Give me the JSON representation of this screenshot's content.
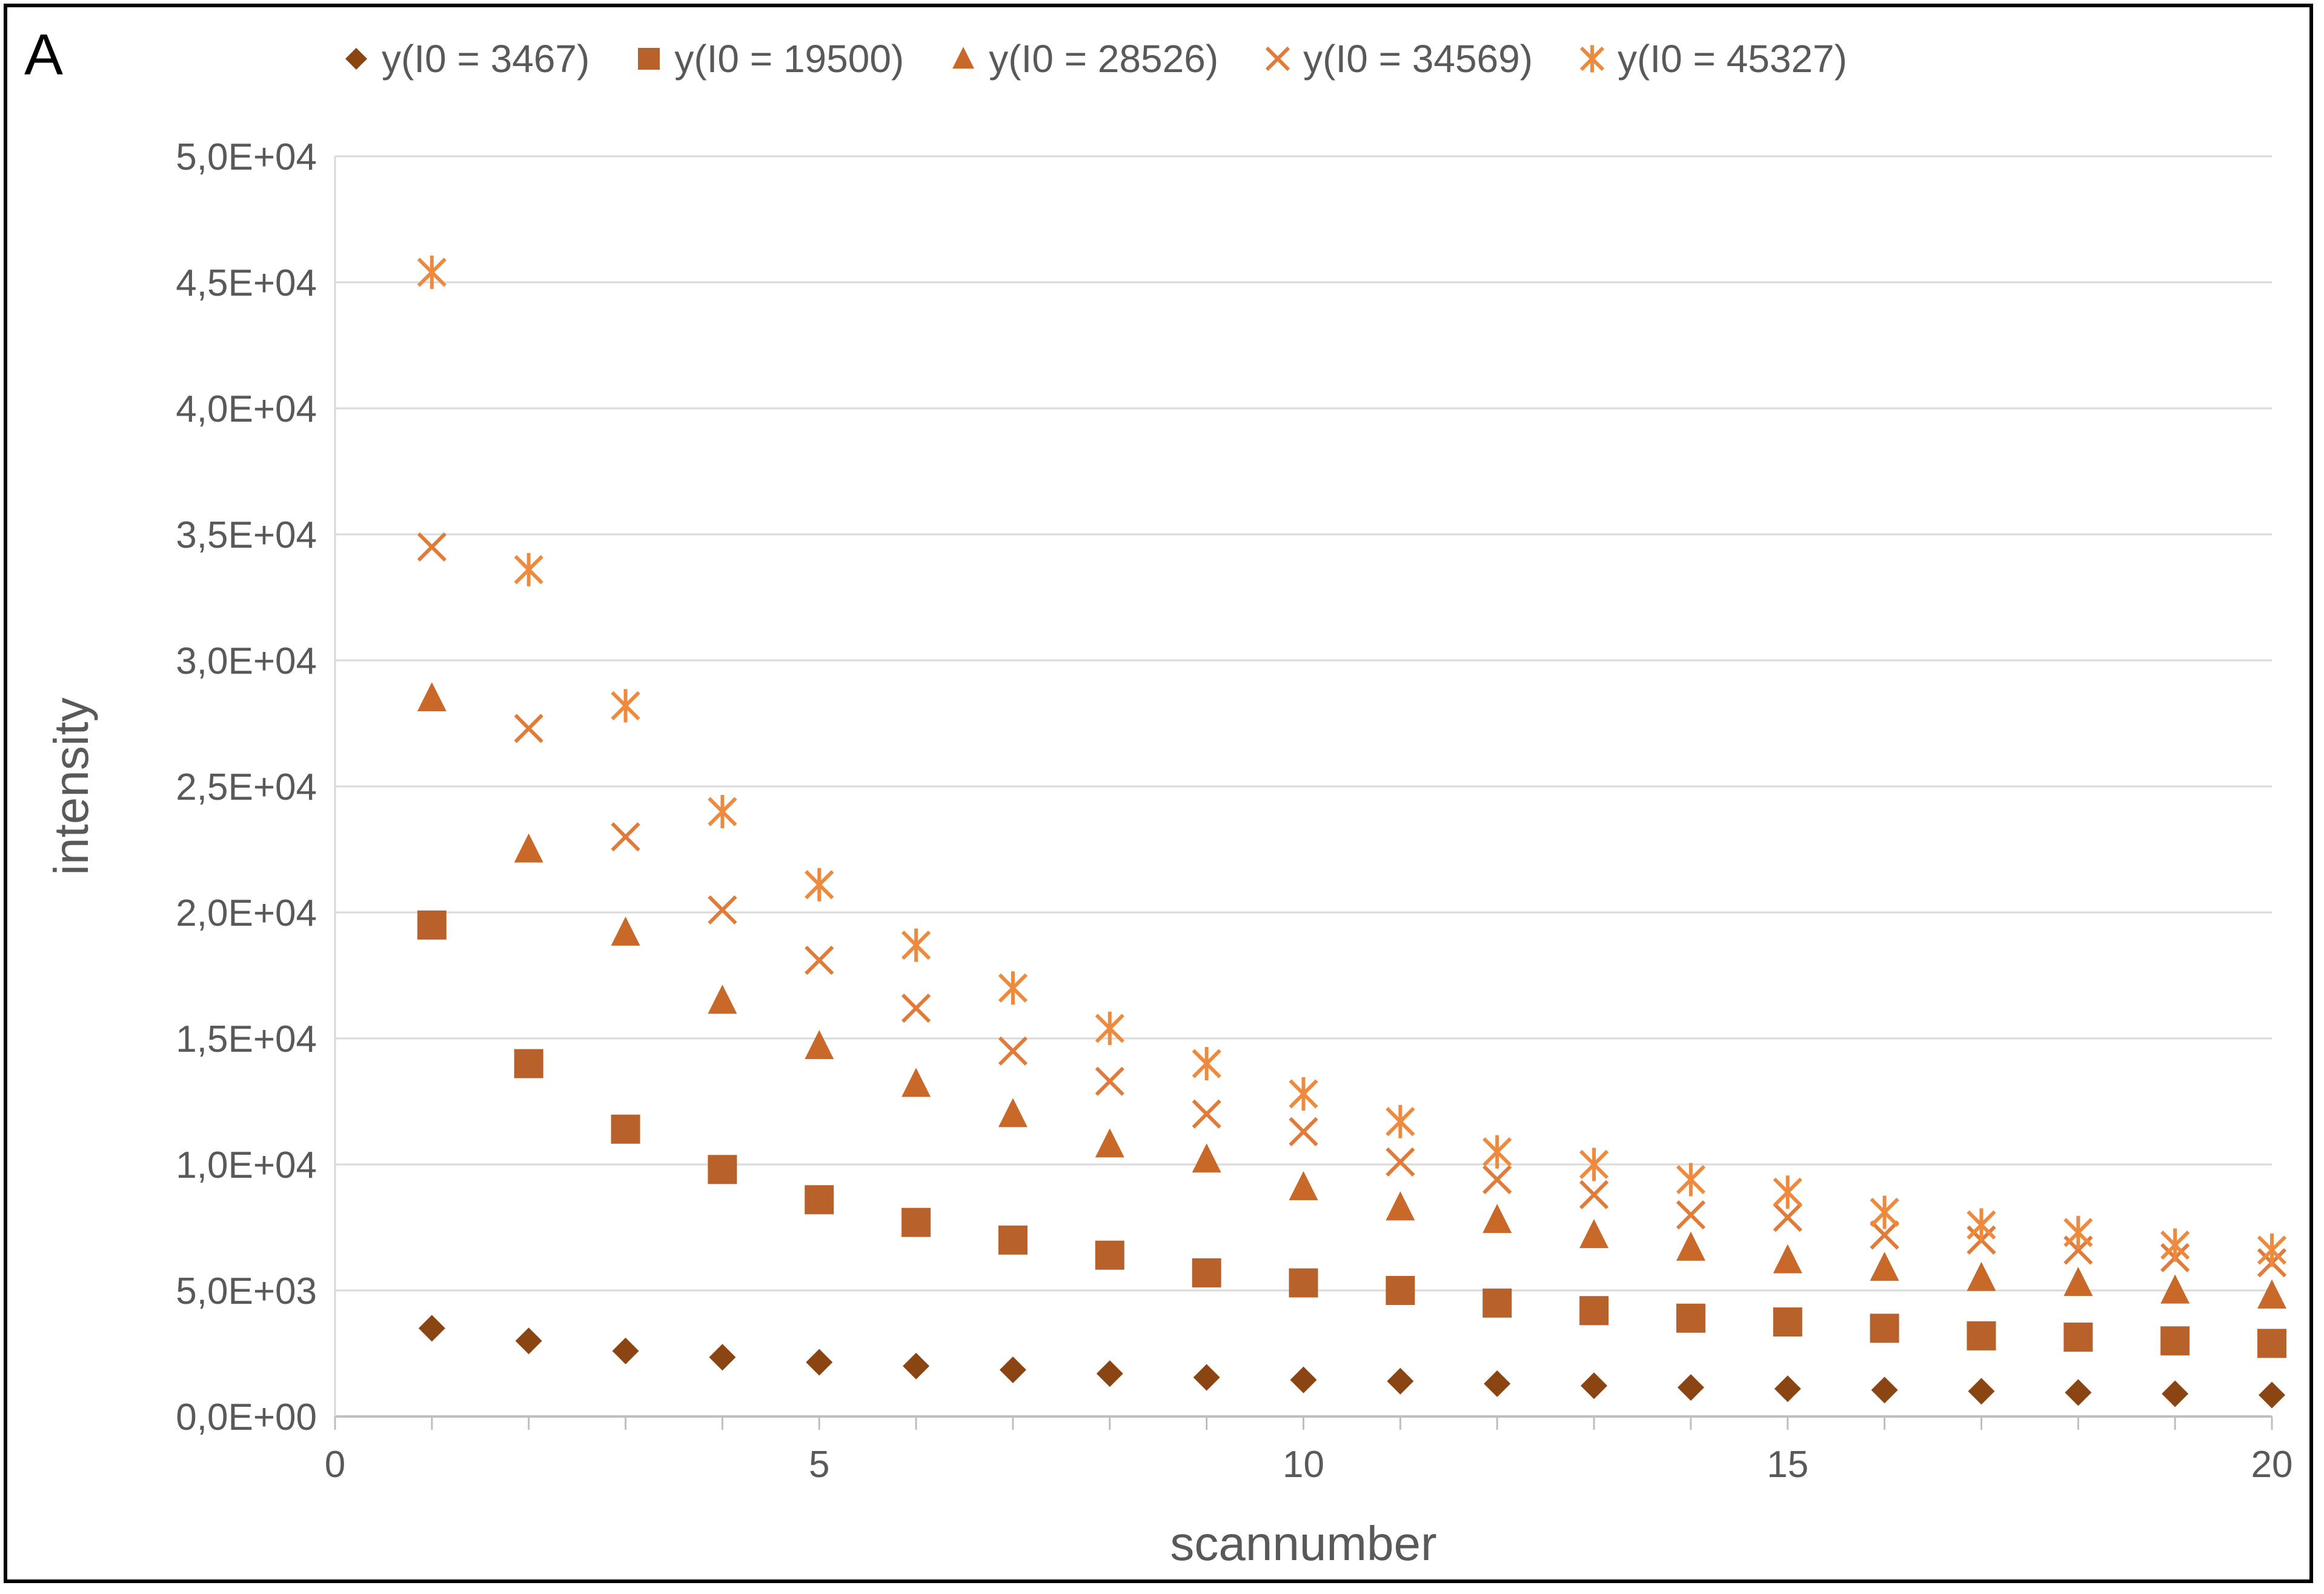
{
  "panel_label": "A",
  "chart_data": {
    "type": "scatter",
    "title": "",
    "xlabel": "scannumber",
    "ylabel": "intensity",
    "xlim": [
      0,
      20
    ],
    "ylim": [
      0,
      50000
    ],
    "x_ticks": [
      0,
      5,
      10,
      15,
      20
    ],
    "x_tick_labels": [
      "0",
      "5",
      "10",
      "15",
      "20"
    ],
    "y_ticks": [
      0,
      5000,
      10000,
      15000,
      20000,
      25000,
      30000,
      35000,
      40000,
      45000,
      50000
    ],
    "y_tick_labels": [
      "0,0E+00",
      "5,0E+03",
      "1,0E+04",
      "1,5E+04",
      "2,0E+04",
      "2,5E+04",
      "3,0E+04",
      "3,5E+04",
      "4,0E+04",
      "4,5E+04",
      "5,0E+04"
    ],
    "grid": "horizontal",
    "legend_position": "top",
    "x": [
      1,
      2,
      3,
      4,
      5,
      6,
      7,
      8,
      9,
      10,
      11,
      12,
      13,
      14,
      15,
      16,
      17,
      18,
      19,
      20
    ],
    "series": [
      {
        "name": "y(I0 = 3467)",
        "marker": "diamond",
        "color": "#8B4513",
        "values": [
          3500,
          3000,
          2600,
          2350,
          2150,
          2000,
          1850,
          1700,
          1550,
          1450,
          1400,
          1300,
          1220,
          1150,
          1100,
          1050,
          1000,
          950,
          900,
          850
        ]
      },
      {
        "name": "y(I0 = 19500)",
        "marker": "square",
        "color": "#B8612A",
        "values": [
          19500,
          14000,
          11400,
          9800,
          8600,
          7700,
          7000,
          6400,
          5700,
          5300,
          5000,
          4500,
          4200,
          3900,
          3750,
          3500,
          3200,
          3150,
          3000,
          2900
        ]
      },
      {
        "name": "y(I0 = 28526)",
        "marker": "triangle",
        "color": "#C8692A",
        "values": [
          28500,
          22500,
          19200,
          16500,
          14700,
          13200,
          12000,
          10800,
          10200,
          9100,
          8300,
          7800,
          7200,
          6700,
          6200,
          5900,
          5500,
          5300,
          5000,
          4800
        ]
      },
      {
        "name": "y(I0 = 34569)",
        "marker": "x",
        "color": "#E07B39",
        "values": [
          34500,
          27300,
          23000,
          20100,
          18100,
          16200,
          14500,
          13300,
          12000,
          11300,
          10100,
          9400,
          8800,
          8000,
          7900,
          7200,
          7000,
          6600,
          6300,
          6100
        ]
      },
      {
        "name": "y(I0 = 45327)",
        "marker": "star",
        "color": "#ED8A3E",
        "values": [
          45400,
          33600,
          28200,
          24000,
          21100,
          18700,
          17000,
          15400,
          14000,
          12800,
          11700,
          10500,
          10000,
          9400,
          8900,
          8100,
          7600,
          7300,
          6800,
          6600
        ]
      }
    ]
  }
}
